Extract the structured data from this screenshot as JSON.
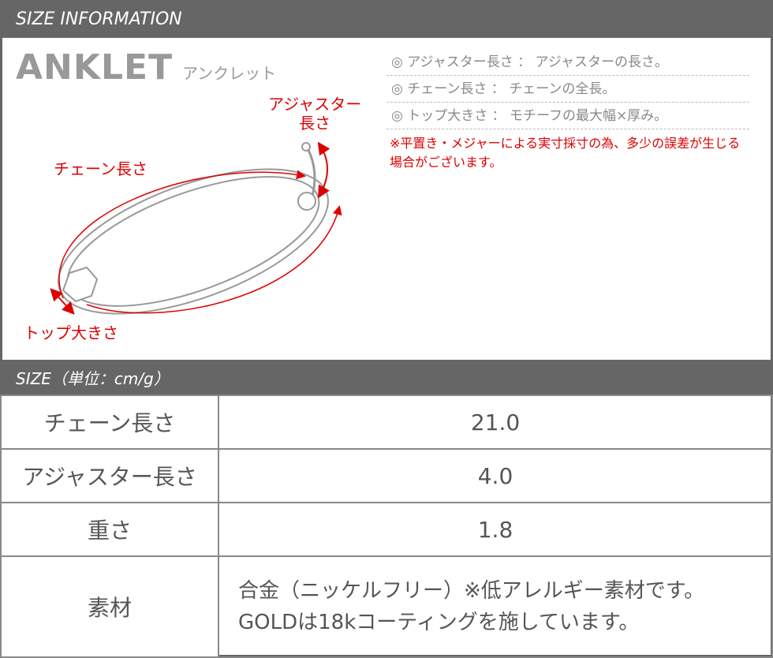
{
  "header": {
    "title": "SIZE INFORMATION"
  },
  "product": {
    "name_en": "ANKLET",
    "name_jp": "アンクレット"
  },
  "notes": [
    "◎ アジャスター長さ ： アジャスターの長さ。",
    "◎ チェーン長さ ： チェーンの全長。",
    "◎ トップ大きさ ： モチーフの最大幅×厚み。"
  ],
  "warning": "※平置き・メジャーによる実寸採寸の為、多少の誤差が生じる場合がございます。",
  "diagram": {
    "adjuster_label_1": "アジャスター",
    "adjuster_label_2": "長さ",
    "chain_label": "チェーン長さ",
    "top_label": "トップ大きさ"
  },
  "colors": {
    "header_bg": "#666666",
    "accent_red": "#dd0000"
  },
  "size_header": "SIZE（単位：cm/g）",
  "rows": [
    {
      "label": "チェーン長さ",
      "value": "21.0"
    },
    {
      "label": "アジャスター長さ",
      "value": "4.0"
    },
    {
      "label": "重さ",
      "value": "1.8"
    },
    {
      "label": "素材",
      "value_line1": "合金（ニッケルフリー）※低アレルギー素材です。",
      "value_line2": "GOLDは18kコーティングを施しています。"
    }
  ]
}
